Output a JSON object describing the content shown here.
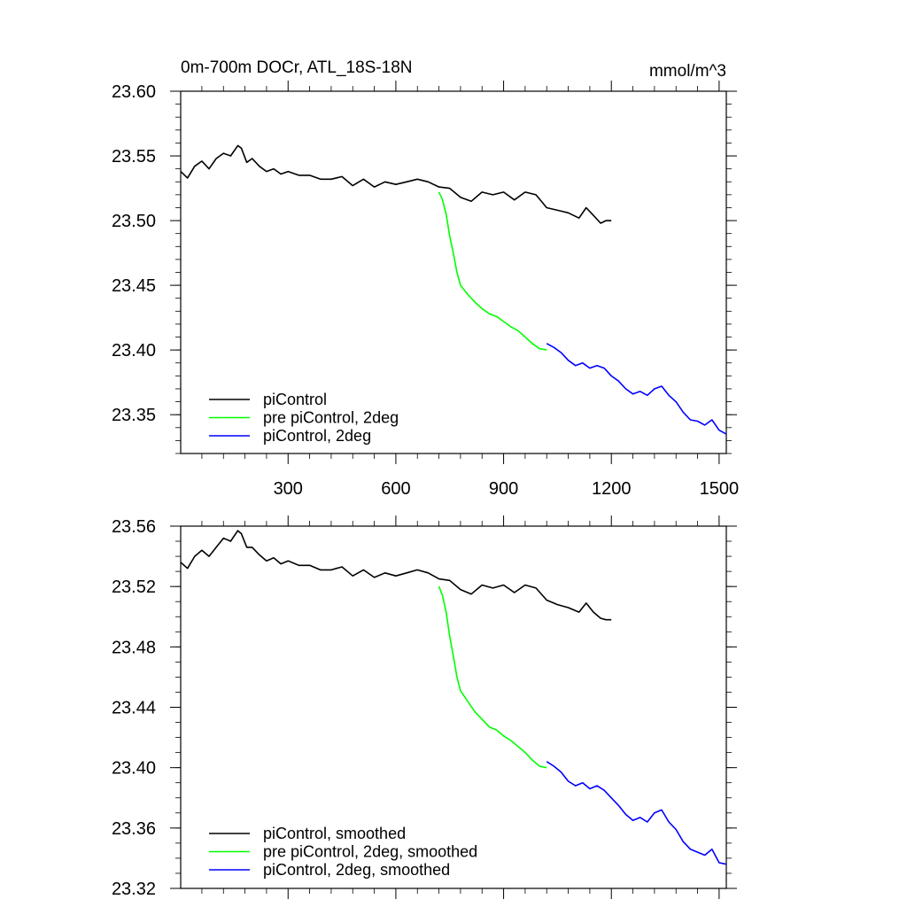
{
  "header": {
    "left_title": "0m-700m DOCr, ATL_18S-18N",
    "units": "mmol/m^3"
  },
  "chart_data": [
    {
      "type": "line",
      "title": "0m-700m DOCr, ATL_18S-18N",
      "units": "mmol/m^3",
      "xlim": [
        1,
        1520
      ],
      "ylim": [
        23.32,
        23.6
      ],
      "x_ticks": [
        300,
        600,
        900,
        1200,
        1500
      ],
      "y_ticks": [
        23.35,
        23.4,
        23.45,
        23.5,
        23.55,
        23.6
      ],
      "y_tick_labels": [
        "23.35",
        "23.40",
        "23.45",
        "23.50",
        "23.55",
        "23.60"
      ],
      "x_tick_labels": [
        "300",
        "600",
        "900",
        "1200",
        "1500"
      ],
      "legend_placement": "bottom-left",
      "series": [
        {
          "name": "piControl",
          "color": "#000000",
          "x": [
            1,
            20,
            40,
            60,
            80,
            100,
            120,
            140,
            160,
            170,
            185,
            200,
            220,
            240,
            260,
            280,
            300,
            330,
            360,
            390,
            420,
            450,
            480,
            510,
            540,
            570,
            600,
            630,
            660,
            690,
            720,
            750,
            780,
            810,
            840,
            870,
            900,
            930,
            960,
            990,
            1020,
            1050,
            1080,
            1110,
            1130,
            1150,
            1170,
            1185,
            1200
          ],
          "y": [
            23.538,
            23.533,
            23.542,
            23.546,
            23.54,
            23.548,
            23.552,
            23.55,
            23.558,
            23.556,
            23.545,
            23.548,
            23.542,
            23.538,
            23.54,
            23.536,
            23.538,
            23.535,
            23.535,
            23.532,
            23.532,
            23.534,
            23.527,
            23.532,
            23.526,
            23.53,
            23.528,
            23.53,
            23.532,
            23.53,
            23.526,
            23.525,
            23.518,
            23.515,
            23.522,
            23.52,
            23.522,
            23.516,
            23.522,
            23.52,
            23.51,
            23.508,
            23.506,
            23.502,
            23.51,
            23.504,
            23.498,
            23.5,
            23.5
          ]
        },
        {
          "name": "pre piControl, 2deg",
          "color": "#00ff00",
          "x": [
            720,
            730,
            740,
            750,
            760,
            770,
            780,
            800,
            820,
            840,
            860,
            880,
            900,
            920,
            940,
            960,
            980,
            1000,
            1020
          ],
          "y": [
            23.522,
            23.516,
            23.505,
            23.488,
            23.475,
            23.46,
            23.45,
            23.443,
            23.437,
            23.432,
            23.428,
            23.426,
            23.422,
            23.418,
            23.415,
            23.41,
            23.405,
            23.401,
            23.4
          ]
        },
        {
          "name": "piControl, 2deg",
          "color": "#0000ff",
          "x": [
            1020,
            1040,
            1060,
            1080,
            1100,
            1120,
            1140,
            1160,
            1180,
            1200,
            1220,
            1240,
            1260,
            1280,
            1300,
            1320,
            1340,
            1360,
            1380,
            1400,
            1420,
            1440,
            1460,
            1480,
            1500,
            1520
          ],
          "y": [
            23.405,
            23.402,
            23.398,
            23.392,
            23.388,
            23.39,
            23.386,
            23.388,
            23.386,
            23.38,
            23.376,
            23.37,
            23.366,
            23.368,
            23.365,
            23.37,
            23.372,
            23.365,
            23.36,
            23.352,
            23.346,
            23.345,
            23.342,
            23.346,
            23.338,
            23.335
          ]
        }
      ]
    },
    {
      "type": "line",
      "xlim": [
        1,
        1520
      ],
      "ylim": [
        23.32,
        23.56
      ],
      "x_ticks": [
        300,
        600,
        900,
        1200,
        1500
      ],
      "y_ticks": [
        23.32,
        23.36,
        23.4,
        23.44,
        23.48,
        23.52,
        23.56
      ],
      "y_tick_labels": [
        "23.32",
        "23.36",
        "23.40",
        "23.44",
        "23.48",
        "23.52",
        "23.56"
      ],
      "legend_placement": "bottom-left",
      "series": [
        {
          "name": "piControl, smoothed",
          "color": "#000000",
          "x": [
            1,
            20,
            40,
            60,
            80,
            100,
            120,
            140,
            160,
            170,
            185,
            200,
            220,
            240,
            260,
            280,
            300,
            330,
            360,
            390,
            420,
            450,
            480,
            510,
            540,
            570,
            600,
            630,
            660,
            690,
            720,
            750,
            780,
            810,
            840,
            870,
            900,
            930,
            960,
            990,
            1020,
            1050,
            1080,
            1110,
            1130,
            1150,
            1170,
            1185,
            1200
          ],
          "y": [
            23.536,
            23.532,
            23.54,
            23.544,
            23.54,
            23.546,
            23.552,
            23.55,
            23.557,
            23.555,
            23.546,
            23.546,
            23.541,
            23.537,
            23.539,
            23.535,
            23.537,
            23.534,
            23.534,
            23.531,
            23.531,
            23.533,
            23.527,
            23.531,
            23.526,
            23.529,
            23.527,
            23.529,
            23.531,
            23.529,
            23.525,
            23.524,
            23.518,
            23.515,
            23.521,
            23.519,
            23.521,
            23.516,
            23.521,
            23.519,
            23.511,
            23.508,
            23.506,
            23.503,
            23.509,
            23.503,
            23.499,
            23.498,
            23.498
          ]
        },
        {
          "name": "pre piControl, 2deg, smoothed",
          "color": "#00ff00",
          "x": [
            720,
            730,
            740,
            750,
            760,
            770,
            780,
            800,
            820,
            840,
            860,
            880,
            900,
            920,
            940,
            960,
            980,
            1000,
            1020
          ],
          "y": [
            23.52,
            23.514,
            23.503,
            23.487,
            23.474,
            23.46,
            23.451,
            23.444,
            23.437,
            23.432,
            23.427,
            23.425,
            23.421,
            23.418,
            23.414,
            23.41,
            23.405,
            23.401,
            23.4
          ]
        },
        {
          "name": "piControl, 2deg, smoothed",
          "color": "#0000ff",
          "x": [
            1020,
            1040,
            1060,
            1080,
            1100,
            1120,
            1140,
            1160,
            1180,
            1200,
            1220,
            1240,
            1260,
            1280,
            1300,
            1320,
            1340,
            1360,
            1380,
            1400,
            1420,
            1440,
            1460,
            1480,
            1500,
            1520
          ],
          "y": [
            23.404,
            23.401,
            23.397,
            23.391,
            23.388,
            23.39,
            23.386,
            23.388,
            23.385,
            23.38,
            23.375,
            23.369,
            23.365,
            23.367,
            23.364,
            23.37,
            23.372,
            23.364,
            23.359,
            23.351,
            23.346,
            23.344,
            23.342,
            23.346,
            23.337,
            23.336
          ]
        }
      ]
    }
  ]
}
